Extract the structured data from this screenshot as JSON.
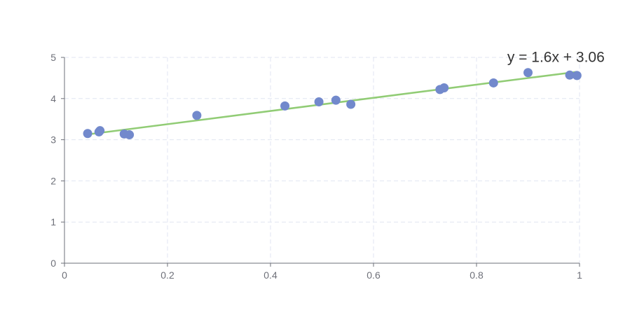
{
  "chart_data": {
    "type": "scatter",
    "title": "",
    "xlabel": "",
    "ylabel": "",
    "xlim": [
      0,
      1
    ],
    "ylim": [
      0,
      5
    ],
    "x_ticks": [
      0,
      0.2,
      0.4,
      0.6,
      0.8,
      1
    ],
    "x_tick_labels": [
      "0",
      "0.2",
      "0.4",
      "0.6",
      "0.8",
      "1"
    ],
    "y_ticks": [
      0,
      1,
      2,
      3,
      4,
      5
    ],
    "y_tick_labels": [
      "0",
      "1",
      "2",
      "3",
      "4",
      "5"
    ],
    "grid": true,
    "points": [
      {
        "x": 0.045,
        "y": 3.15
      },
      {
        "x": 0.067,
        "y": 3.19
      },
      {
        "x": 0.069,
        "y": 3.22
      },
      {
        "x": 0.116,
        "y": 3.14
      },
      {
        "x": 0.126,
        "y": 3.12
      },
      {
        "x": 0.257,
        "y": 3.59
      },
      {
        "x": 0.428,
        "y": 3.82
      },
      {
        "x": 0.494,
        "y": 3.92
      },
      {
        "x": 0.527,
        "y": 3.96
      },
      {
        "x": 0.556,
        "y": 3.86
      },
      {
        "x": 0.729,
        "y": 4.22
      },
      {
        "x": 0.737,
        "y": 4.26
      },
      {
        "x": 0.833,
        "y": 4.38
      },
      {
        "x": 0.9,
        "y": 4.63
      },
      {
        "x": 0.981,
        "y": 4.57
      },
      {
        "x": 0.995,
        "y": 4.56
      }
    ],
    "trendline": {
      "x": [
        0.045,
        0.995
      ],
      "y": [
        3.13,
        4.65
      ],
      "label": "y = 1.6x + 3.06"
    },
    "colors": {
      "points": "#7289cc",
      "trendline": "#91cc75",
      "axis": "#6e7079",
      "grid": "#e0e6f1"
    }
  }
}
